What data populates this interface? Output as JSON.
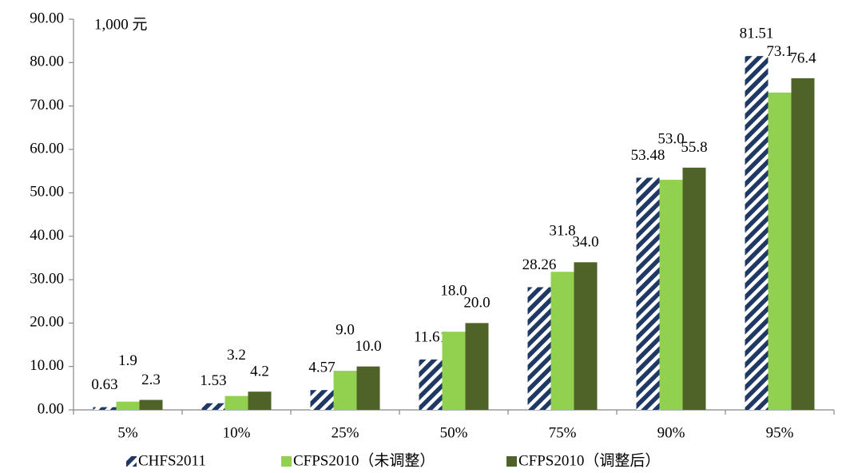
{
  "chart_data": {
    "type": "bar",
    "annotation": "1,000 元",
    "categories": [
      "5%",
      "10%",
      "25%",
      "50%",
      "75%",
      "90%",
      "95%"
    ],
    "series": [
      {
        "name": "CHFS2011",
        "color": "#1f3864",
        "pattern": "hatch",
        "values": [
          0.63,
          1.53,
          4.57,
          11.61,
          28.26,
          53.48,
          81.51
        ]
      },
      {
        "name": "CFPS2010（未调整）",
        "color": "#92d050",
        "values": [
          1.9,
          3.2,
          9.0,
          18.0,
          31.8,
          53.0,
          73.1
        ],
        "value_labels": [
          "1.9",
          "3.2",
          "9.0",
          "18.0",
          "31.8",
          "53.0",
          "73.1"
        ]
      },
      {
        "name": "CFPS2010（调整后）",
        "color": "#4f6228",
        "values": [
          2.3,
          4.2,
          10.0,
          20.0,
          34.0,
          55.8,
          76.4
        ],
        "value_labels": [
          "2.3",
          "4.2",
          "10.0",
          "20.0",
          "34.0",
          "55.8",
          "76.4"
        ]
      }
    ],
    "ylim": [
      0,
      90
    ],
    "yticks": [
      {
        "value": 0,
        "label": "0.00"
      },
      {
        "value": 10,
        "label": "10.00"
      },
      {
        "value": 20,
        "label": "20.00"
      },
      {
        "value": 30,
        "label": "30.00"
      },
      {
        "value": 40,
        "label": "40.00"
      },
      {
        "value": 50,
        "label": "50.00"
      },
      {
        "value": 60,
        "label": "60.00"
      },
      {
        "value": 70,
        "label": "70.00"
      },
      {
        "value": 80,
        "label": "80.00"
      },
      {
        "value": 90,
        "label": "90.00"
      }
    ],
    "legend": "bottom"
  }
}
